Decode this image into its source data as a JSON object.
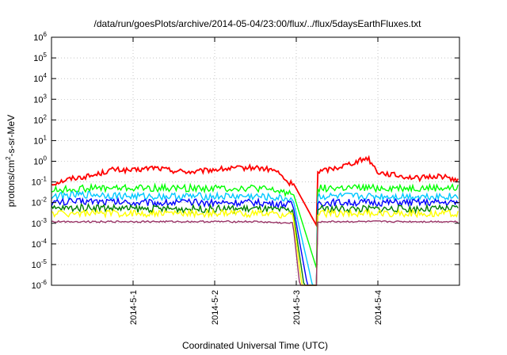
{
  "chart_data": {
    "type": "line",
    "title": "/data/run/goesPlots/archive/2014-05-04/23:00/flux/../flux/5daysEarthFluxes.txt",
    "xlabel": "Coordinated Universal Time (UTC)",
    "ylabel_parts": {
      "base": "protons/cm",
      "sup": "2",
      "rest": "-s-sr-MeV"
    },
    "y_scale": "log",
    "ylim": [
      1e-06,
      1000000.0
    ],
    "y_ticks": [
      {
        "base": "10",
        "exp": "-6",
        "value": 1e-06
      },
      {
        "base": "10",
        "exp": "-5",
        "value": 1e-05
      },
      {
        "base": "10",
        "exp": "-4",
        "value": 0.0001
      },
      {
        "base": "10",
        "exp": "-3",
        "value": 0.001
      },
      {
        "base": "10",
        "exp": "-2",
        "value": 0.01
      },
      {
        "base": "10",
        "exp": "-1",
        "value": 0.1
      },
      {
        "base": "10",
        "exp": "0",
        "value": 1.0
      },
      {
        "base": "10",
        "exp": "1",
        "value": 10.0
      },
      {
        "base": "10",
        "exp": "2",
        "value": 100.0
      },
      {
        "base": "10",
        "exp": "3",
        "value": 1000.0
      },
      {
        "base": "10",
        "exp": "4",
        "value": 10000.0
      },
      {
        "base": "10",
        "exp": "5",
        "value": 100000.0
      },
      {
        "base": "10",
        "exp": "6",
        "value": 1000000.0
      }
    ],
    "xlim": [
      "2014-04-30T00:00",
      "2014-05-05T00:00"
    ],
    "x_ticks": [
      {
        "label": "2014-5-1",
        "date": "2014-05-01T00:00"
      },
      {
        "label": "2014-5-2",
        "date": "2014-05-02T00:00"
      },
      {
        "label": "2014-5-3",
        "date": "2014-05-03T00:00"
      },
      {
        "label": "2014-5-4",
        "date": "2014-05-04T00:00"
      }
    ],
    "grid": true,
    "dropout": {
      "start": "2014-05-02T23:00",
      "end": "2014-05-03T06:00"
    },
    "series": [
      {
        "color": "#ff0000",
        "values": [
          [
            "2014-04-30T00:00",
            0.08
          ],
          [
            "2014-04-30T06:00",
            0.15
          ],
          [
            "2014-04-30T12:00",
            0.2
          ],
          [
            "2014-04-30T18:00",
            0.4
          ],
          [
            "2014-05-01T00:00",
            0.35
          ],
          [
            "2014-05-01T06:00",
            0.5
          ],
          [
            "2014-05-01T12:00",
            0.35
          ],
          [
            "2014-05-01T18:00",
            0.3
          ],
          [
            "2014-05-02T00:00",
            0.4
          ],
          [
            "2014-05-02T06:00",
            0.45
          ],
          [
            "2014-05-02T12:00",
            0.5
          ],
          [
            "2014-05-02T18:00",
            0.35
          ],
          [
            "2014-05-02T22:00",
            0.08
          ],
          [
            "2014-05-03T06:00",
            0.3
          ],
          [
            "2014-05-03T12:00",
            0.5
          ],
          [
            "2014-05-03T18:00",
            1.0
          ],
          [
            "2014-05-03T21:00",
            1.5
          ],
          [
            "2014-05-04T00:00",
            0.3
          ],
          [
            "2014-05-04T06:00",
            0.2
          ],
          [
            "2014-05-04T12:00",
            0.15
          ],
          [
            "2014-05-04T18:00",
            0.2
          ],
          [
            "2014-05-04T23:59",
            0.12
          ]
        ]
      },
      {
        "color": "#00ff00",
        "values": [
          [
            "2014-04-30T00:00",
            0.04
          ],
          [
            "2014-04-30T12:00",
            0.05
          ],
          [
            "2014-05-01T00:00",
            0.05
          ],
          [
            "2014-05-01T12:00",
            0.05
          ],
          [
            "2014-05-02T00:00",
            0.05
          ],
          [
            "2014-05-02T12:00",
            0.05
          ],
          [
            "2014-05-02T22:00",
            0.03
          ],
          [
            "2014-05-03T06:00",
            0.05
          ],
          [
            "2014-05-03T12:00",
            0.05
          ],
          [
            "2014-05-04T00:00",
            0.05
          ],
          [
            "2014-05-04T12:00",
            0.05
          ],
          [
            "2014-05-04T23:59",
            0.05
          ]
        ]
      },
      {
        "color": "#00c8ff",
        "values": [
          [
            "2014-04-30T00:00",
            0.02
          ],
          [
            "2014-04-30T12:00",
            0.025
          ],
          [
            "2014-05-01T00:00",
            0.02
          ],
          [
            "2014-05-01T12:00",
            0.02
          ],
          [
            "2014-05-02T00:00",
            0.02
          ],
          [
            "2014-05-02T12:00",
            0.02
          ],
          [
            "2014-05-02T22:00",
            0.015
          ],
          [
            "2014-05-03T06:00",
            0.02
          ],
          [
            "2014-05-03T12:00",
            0.02
          ],
          [
            "2014-05-04T00:00",
            0.02
          ],
          [
            "2014-05-04T12:00",
            0.02
          ],
          [
            "2014-05-04T23:59",
            0.02
          ]
        ]
      },
      {
        "color": "#0000ff",
        "values": [
          [
            "2014-04-30T00:00",
            0.01
          ],
          [
            "2014-04-30T12:00",
            0.012
          ],
          [
            "2014-05-01T00:00",
            0.01
          ],
          [
            "2014-05-01T12:00",
            0.01
          ],
          [
            "2014-05-02T00:00",
            0.01
          ],
          [
            "2014-05-02T12:00",
            0.01
          ],
          [
            "2014-05-02T22:00",
            0.008
          ],
          [
            "2014-05-03T06:00",
            0.01
          ],
          [
            "2014-05-03T12:00",
            0.01
          ],
          [
            "2014-05-04T00:00",
            0.01
          ],
          [
            "2014-05-04T12:00",
            0.01
          ],
          [
            "2014-05-04T23:59",
            0.01
          ]
        ]
      },
      {
        "color": "#008000",
        "values": [
          [
            "2014-04-30T00:00",
            0.005
          ],
          [
            "2014-04-30T12:00",
            0.006
          ],
          [
            "2014-05-01T00:00",
            0.005
          ],
          [
            "2014-05-01T12:00",
            0.005
          ],
          [
            "2014-05-02T00:00",
            0.005
          ],
          [
            "2014-05-02T12:00",
            0.005
          ],
          [
            "2014-05-02T22:00",
            0.004
          ],
          [
            "2014-05-03T06:00",
            0.005
          ],
          [
            "2014-05-03T12:00",
            0.005
          ],
          [
            "2014-05-04T00:00",
            0.005
          ],
          [
            "2014-05-04T12:00",
            0.005
          ],
          [
            "2014-05-04T23:59",
            0.005
          ]
        ]
      },
      {
        "color": "#ffff00",
        "values": [
          [
            "2014-04-30T00:00",
            0.003
          ],
          [
            "2014-04-30T12:00",
            0.003
          ],
          [
            "2014-05-01T00:00",
            0.003
          ],
          [
            "2014-05-01T12:00",
            0.003
          ],
          [
            "2014-05-02T00:00",
            0.003
          ],
          [
            "2014-05-02T12:00",
            0.003
          ],
          [
            "2014-05-02T22:00",
            0.0025
          ],
          [
            "2014-05-03T06:00",
            0.003
          ],
          [
            "2014-05-03T12:00",
            0.003
          ],
          [
            "2014-05-04T00:00",
            0.003
          ],
          [
            "2014-05-04T12:00",
            0.003
          ],
          [
            "2014-05-04T23:59",
            0.003
          ]
        ]
      },
      {
        "color": "#993366",
        "values": [
          [
            "2014-04-30T00:00",
            0.0012
          ],
          [
            "2014-04-30T12:00",
            0.0012
          ],
          [
            "2014-05-01T00:00",
            0.0012
          ],
          [
            "2014-05-01T12:00",
            0.0012
          ],
          [
            "2014-05-02T00:00",
            0.0012
          ],
          [
            "2014-05-02T12:00",
            0.0012
          ],
          [
            "2014-05-02T22:00",
            0.001
          ],
          [
            "2014-05-03T06:00",
            0.0012
          ],
          [
            "2014-05-03T12:00",
            0.0012
          ],
          [
            "2014-05-04T00:00",
            0.0012
          ],
          [
            "2014-05-04T12:00",
            0.0012
          ],
          [
            "2014-05-04T23:59",
            0.0012
          ]
        ]
      }
    ]
  }
}
